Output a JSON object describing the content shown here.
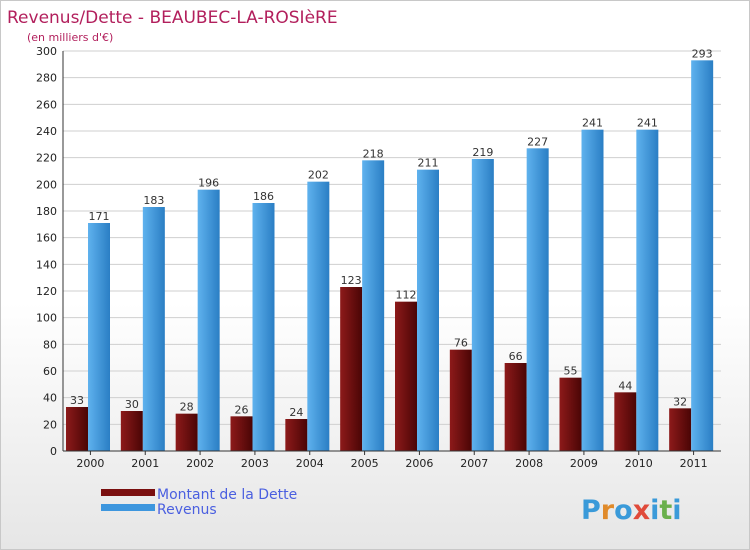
{
  "chart_data": {
    "type": "bar",
    "title": "Revenus/Dette - BEAUBEC-LA-ROSIèRE",
    "subtitle": "(en milliers d'€)",
    "categories": [
      "2000",
      "2001",
      "2002",
      "2003",
      "2004",
      "2005",
      "2006",
      "2007",
      "2008",
      "2009",
      "2010",
      "2011"
    ],
    "series": [
      {
        "name": "Montant de la Dette",
        "color": "#7a0f0f",
        "values": [
          33,
          30,
          28,
          26,
          24,
          123,
          112,
          76,
          66,
          55,
          44,
          32
        ]
      },
      {
        "name": "Revenus",
        "color": "#3d96de",
        "values": [
          171,
          183,
          196,
          186,
          202,
          218,
          211,
          219,
          227,
          241,
          241,
          293
        ]
      }
    ],
    "ylim": [
      0,
      300
    ],
    "yticks": [
      0,
      20,
      40,
      60,
      80,
      100,
      120,
      140,
      160,
      180,
      200,
      220,
      240,
      260,
      280,
      300
    ],
    "grid": true,
    "legend": "bottom-left"
  },
  "logo": {
    "text": "Proxiti",
    "colors": [
      "#3a9ad9",
      "#e08a2a",
      "#3a9ad9",
      "#e04a3a",
      "#3a9ad9",
      "#6ab04c",
      "#3a9ad9"
    ]
  }
}
